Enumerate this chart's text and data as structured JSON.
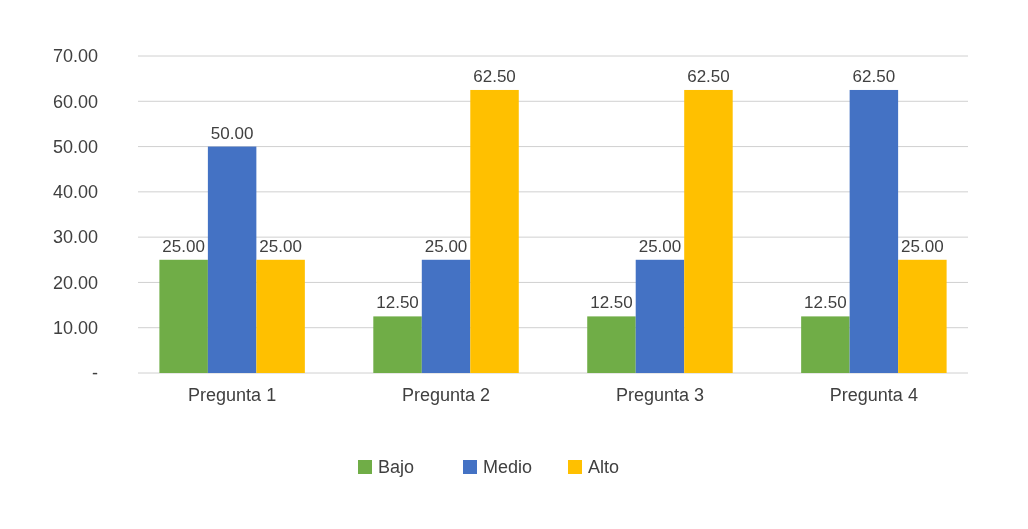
{
  "chart_data": {
    "type": "bar",
    "categories": [
      "Pregunta 1",
      "Pregunta 2",
      "Pregunta 3",
      "Pregunta 4"
    ],
    "series": [
      {
        "name": "Bajo",
        "color": "#70ad47",
        "values": [
          25,
          12.5,
          12.5,
          12.5
        ],
        "value_labels": [
          "25.00",
          "12.50",
          "12.50",
          "12.50"
        ]
      },
      {
        "name": "Medio",
        "color": "#4472c4",
        "values": [
          50,
          25,
          25,
          62.5
        ],
        "value_labels": [
          "50.00",
          "25.00",
          "25.00",
          "62.50"
        ]
      },
      {
        "name": "Alto",
        "color": "#ffc000",
        "values": [
          25,
          62.5,
          62.5,
          25
        ],
        "value_labels": [
          "25.00",
          "62.50",
          "62.50",
          "25.00"
        ]
      }
    ],
    "ylim": [
      0,
      70
    ],
    "yticks": [
      {
        "value": 0,
        "label": "-"
      },
      {
        "value": 10,
        "label": "10.00"
      },
      {
        "value": 20,
        "label": "20.00"
      },
      {
        "value": 30,
        "label": "30.00"
      },
      {
        "value": 40,
        "label": "40.00"
      },
      {
        "value": 50,
        "label": "50.00"
      },
      {
        "value": 60,
        "label": "60.00"
      },
      {
        "value": 70,
        "label": "70.00"
      }
    ],
    "grid": "y",
    "legend": "bottom"
  }
}
